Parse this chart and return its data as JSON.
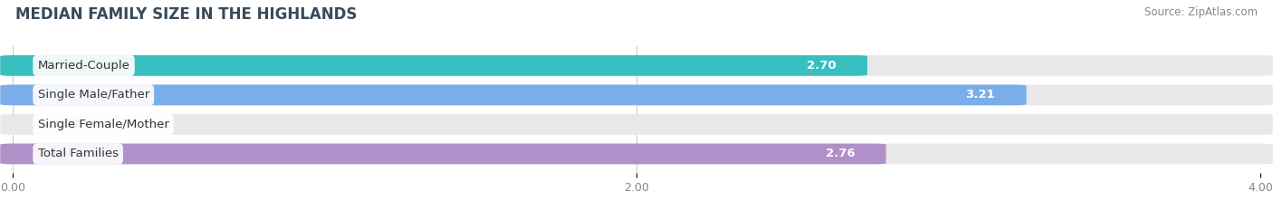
{
  "title": "MEDIAN FAMILY SIZE IN THE HIGHLANDS",
  "source": "Source: ZipAtlas.com",
  "categories": [
    "Married-Couple",
    "Single Male/Father",
    "Single Female/Mother",
    "Total Families"
  ],
  "values": [
    2.7,
    3.21,
    0.0,
    2.76
  ],
  "bar_colors": [
    "#38BFBF",
    "#7AAEEA",
    "#F4A0B5",
    "#B090C8"
  ],
  "xlim": [
    0,
    4.0
  ],
  "xticks": [
    0.0,
    2.0,
    4.0
  ],
  "xtick_labels": [
    "0.00",
    "2.00",
    "4.00"
  ],
  "bar_height": 0.62,
  "background_color": "#ffffff",
  "bar_bg_color": "#e8e8e8",
  "label_fontsize": 9.5,
  "value_fontsize": 9.5,
  "title_fontsize": 12,
  "title_color": "#3a4a5a",
  "source_fontsize": 8.5
}
